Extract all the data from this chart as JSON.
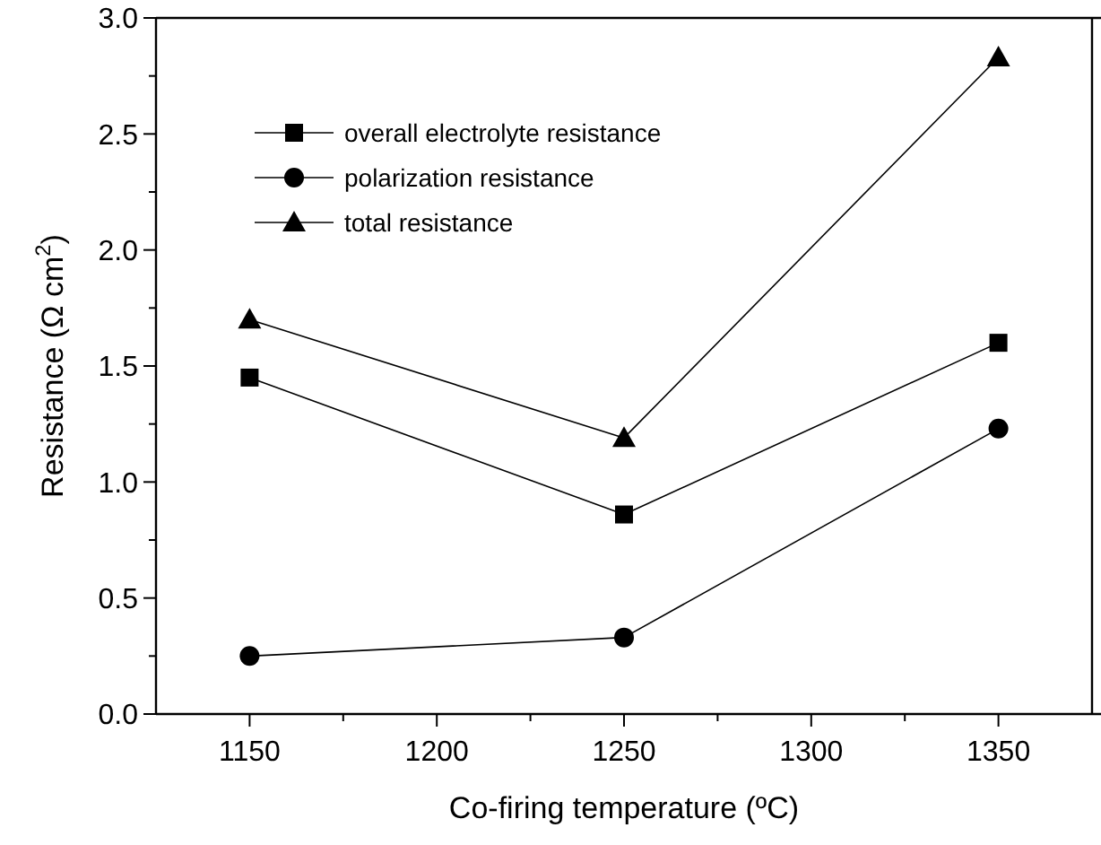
{
  "chart_data": {
    "type": "line",
    "xlabel": "Co-firing temperature (ºC)",
    "ylabel": "Resistance (Ω cm$^{2}$)",
    "x": [
      1150,
      1250,
      1350
    ],
    "series": [
      {
        "name": "overall electrolyte resistance",
        "color": "#000000",
        "marker": "square",
        "values": [
          1.45,
          0.86,
          1.6
        ]
      },
      {
        "name": "polarization resistance",
        "color": "#000000",
        "marker": "circle",
        "values": [
          0.25,
          0.33,
          1.23
        ]
      },
      {
        "name": "total resistance",
        "color": "#000000",
        "marker": "triangle",
        "values": [
          1.7,
          1.19,
          2.83
        ]
      }
    ],
    "xlim": [
      1125,
      1375
    ],
    "xticks": [
      1150,
      {
        "value": 1175,
        "label": null
      },
      1200,
      {
        "value": 1225,
        "label": null
      },
      1250,
      {
        "value": 1275,
        "label": null
      },
      1300,
      {
        "value": 1325,
        "label": null
      },
      1350
    ],
    "ylim": [
      0,
      3
    ],
    "yticks": [
      {
        "value": 0,
        "label": "0.0"
      },
      {
        "value": 0.25,
        "label": null
      },
      {
        "value": 0.5,
        "label": "0.5"
      },
      {
        "value": 0.75,
        "label": null
      },
      {
        "value": 1,
        "label": "1.0"
      },
      {
        "value": 1.25,
        "label": null
      },
      {
        "value": 1.5,
        "label": "1.5"
      },
      {
        "value": 1.75,
        "label": null
      },
      {
        "value": 2,
        "label": "2.0"
      },
      {
        "value": 2.25,
        "label": null
      },
      {
        "value": 2.5,
        "label": "2.5"
      },
      {
        "value": 2.75,
        "label": null
      },
      {
        "value": 3,
        "label": "3.0"
      }
    ],
    "legend": "top left",
    "grid": false,
    "line_style": "solid"
  }
}
